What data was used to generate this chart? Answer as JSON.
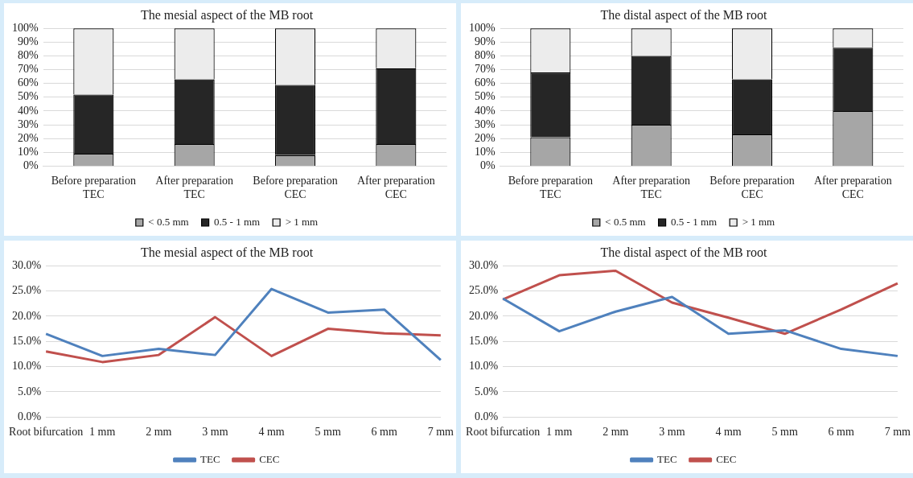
{
  "chart_data": [
    {
      "type": "bar",
      "title": "The mesial aspect of the MB root",
      "categories": [
        "Before preparation\nTEC",
        "After preparation\nTEC",
        "Before preparation\nCEC",
        "After preparation\nCEC"
      ],
      "stacked": true,
      "series": [
        {
          "name": "< 0.5 mm",
          "color": "#a6a6a6",
          "values": [
            9,
            16,
            8,
            16
          ]
        },
        {
          "name": "0.5 - 1 mm",
          "color": "#262626",
          "values": [
            43,
            47,
            51,
            55
          ]
        },
        {
          "name": "> 1 mm",
          "color": "#ececec",
          "values": [
            48,
            37,
            41,
            29
          ]
        }
      ],
      "ylim": [
        0,
        100
      ],
      "yticks": [
        {
          "value": 0,
          "label": "0%"
        },
        {
          "value": 10,
          "label": "10%"
        },
        {
          "value": 20,
          "label": "20%"
        },
        {
          "value": 30,
          "label": "30%"
        },
        {
          "value": 40,
          "label": "40%"
        },
        {
          "value": 50,
          "label": "50%"
        },
        {
          "value": 60,
          "label": "60%"
        },
        {
          "value": 70,
          "label": "70%"
        },
        {
          "value": 80,
          "label": "80%"
        },
        {
          "value": 90,
          "label": "90%"
        },
        {
          "value": 100,
          "label": "100%"
        }
      ],
      "grid": "y",
      "legend": "bottom"
    },
    {
      "type": "bar",
      "title": "The distal aspect of the MB root",
      "categories": [
        "Before preparation\nTEC",
        "After preparation\nTEC",
        "Before preparation\nCEC",
        "After preparation\nCEC"
      ],
      "stacked": true,
      "series": [
        {
          "name": "< 0.5 mm",
          "color": "#a6a6a6",
          "values": [
            21,
            30,
            23,
            40
          ]
        },
        {
          "name": "0.5 - 1 mm",
          "color": "#262626",
          "values": [
            47,
            50,
            40,
            46
          ]
        },
        {
          "name": "> 1 mm",
          "color": "#ececec",
          "values": [
            32,
            20,
            37,
            14
          ]
        }
      ],
      "ylim": [
        0,
        100
      ],
      "yticks": [
        {
          "value": 0,
          "label": "0%"
        },
        {
          "value": 10,
          "label": "10%"
        },
        {
          "value": 20,
          "label": "20%"
        },
        {
          "value": 30,
          "label": "30%"
        },
        {
          "value": 40,
          "label": "40%"
        },
        {
          "value": 50,
          "label": "50%"
        },
        {
          "value": 60,
          "label": "60%"
        },
        {
          "value": 70,
          "label": "70%"
        },
        {
          "value": 80,
          "label": "80%"
        },
        {
          "value": 90,
          "label": "90%"
        },
        {
          "value": 100,
          "label": "100%"
        }
      ],
      "grid": "y",
      "legend": "bottom"
    },
    {
      "type": "line",
      "title": "The mesial aspect of the MB root",
      "categories": [
        "Root bifurcation",
        "1 mm",
        "2 mm",
        "3 mm",
        "4 mm",
        "5 mm",
        "6 mm",
        "7 mm"
      ],
      "series": [
        {
          "name": "TEC",
          "color": "#4f81bd",
          "values": [
            16.5,
            12.1,
            13.5,
            12.3,
            25.4,
            20.7,
            21.3,
            11.3
          ]
        },
        {
          "name": "CEC",
          "color": "#c0504d",
          "values": [
            13.0,
            10.9,
            12.3,
            19.8,
            12.1,
            17.5,
            16.6,
            16.2
          ]
        }
      ],
      "ylim": [
        0,
        30
      ],
      "yticks": [
        {
          "value": 0,
          "label": "0.0%"
        },
        {
          "value": 5,
          "label": "5.0%"
        },
        {
          "value": 10,
          "label": "10.0%"
        },
        {
          "value": 15,
          "label": "15.0%"
        },
        {
          "value": 20,
          "label": "20.0%"
        },
        {
          "value": 25,
          "label": "25.0%"
        },
        {
          "value": 30,
          "label": "30.0%"
        }
      ],
      "grid": "y",
      "legend": "bottom",
      "marker": "none"
    },
    {
      "type": "line",
      "title": "The distal aspect of the MB root",
      "categories": [
        "Root bifurcation",
        "1 mm",
        "2 mm",
        "3 mm",
        "4 mm",
        "5 mm",
        "6 mm",
        "7 mm"
      ],
      "series": [
        {
          "name": "TEC",
          "color": "#4f81bd",
          "values": [
            23.5,
            17.0,
            20.9,
            23.8,
            16.5,
            17.2,
            13.5,
            12.1
          ]
        },
        {
          "name": "CEC",
          "color": "#c0504d",
          "values": [
            23.3,
            28.1,
            29.0,
            22.7,
            19.7,
            16.5,
            21.3,
            26.5
          ]
        }
      ],
      "ylim": [
        0,
        30
      ],
      "yticks": [
        {
          "value": 0,
          "label": "0.0%"
        },
        {
          "value": 5,
          "label": "5.0%"
        },
        {
          "value": 10,
          "label": "10.0%"
        },
        {
          "value": 15,
          "label": "15.0%"
        },
        {
          "value": 20,
          "label": "20.0%"
        },
        {
          "value": 25,
          "label": "25.0%"
        },
        {
          "value": 30,
          "label": "30.0%"
        }
      ],
      "grid": "y",
      "legend": "bottom",
      "marker": "none"
    }
  ]
}
